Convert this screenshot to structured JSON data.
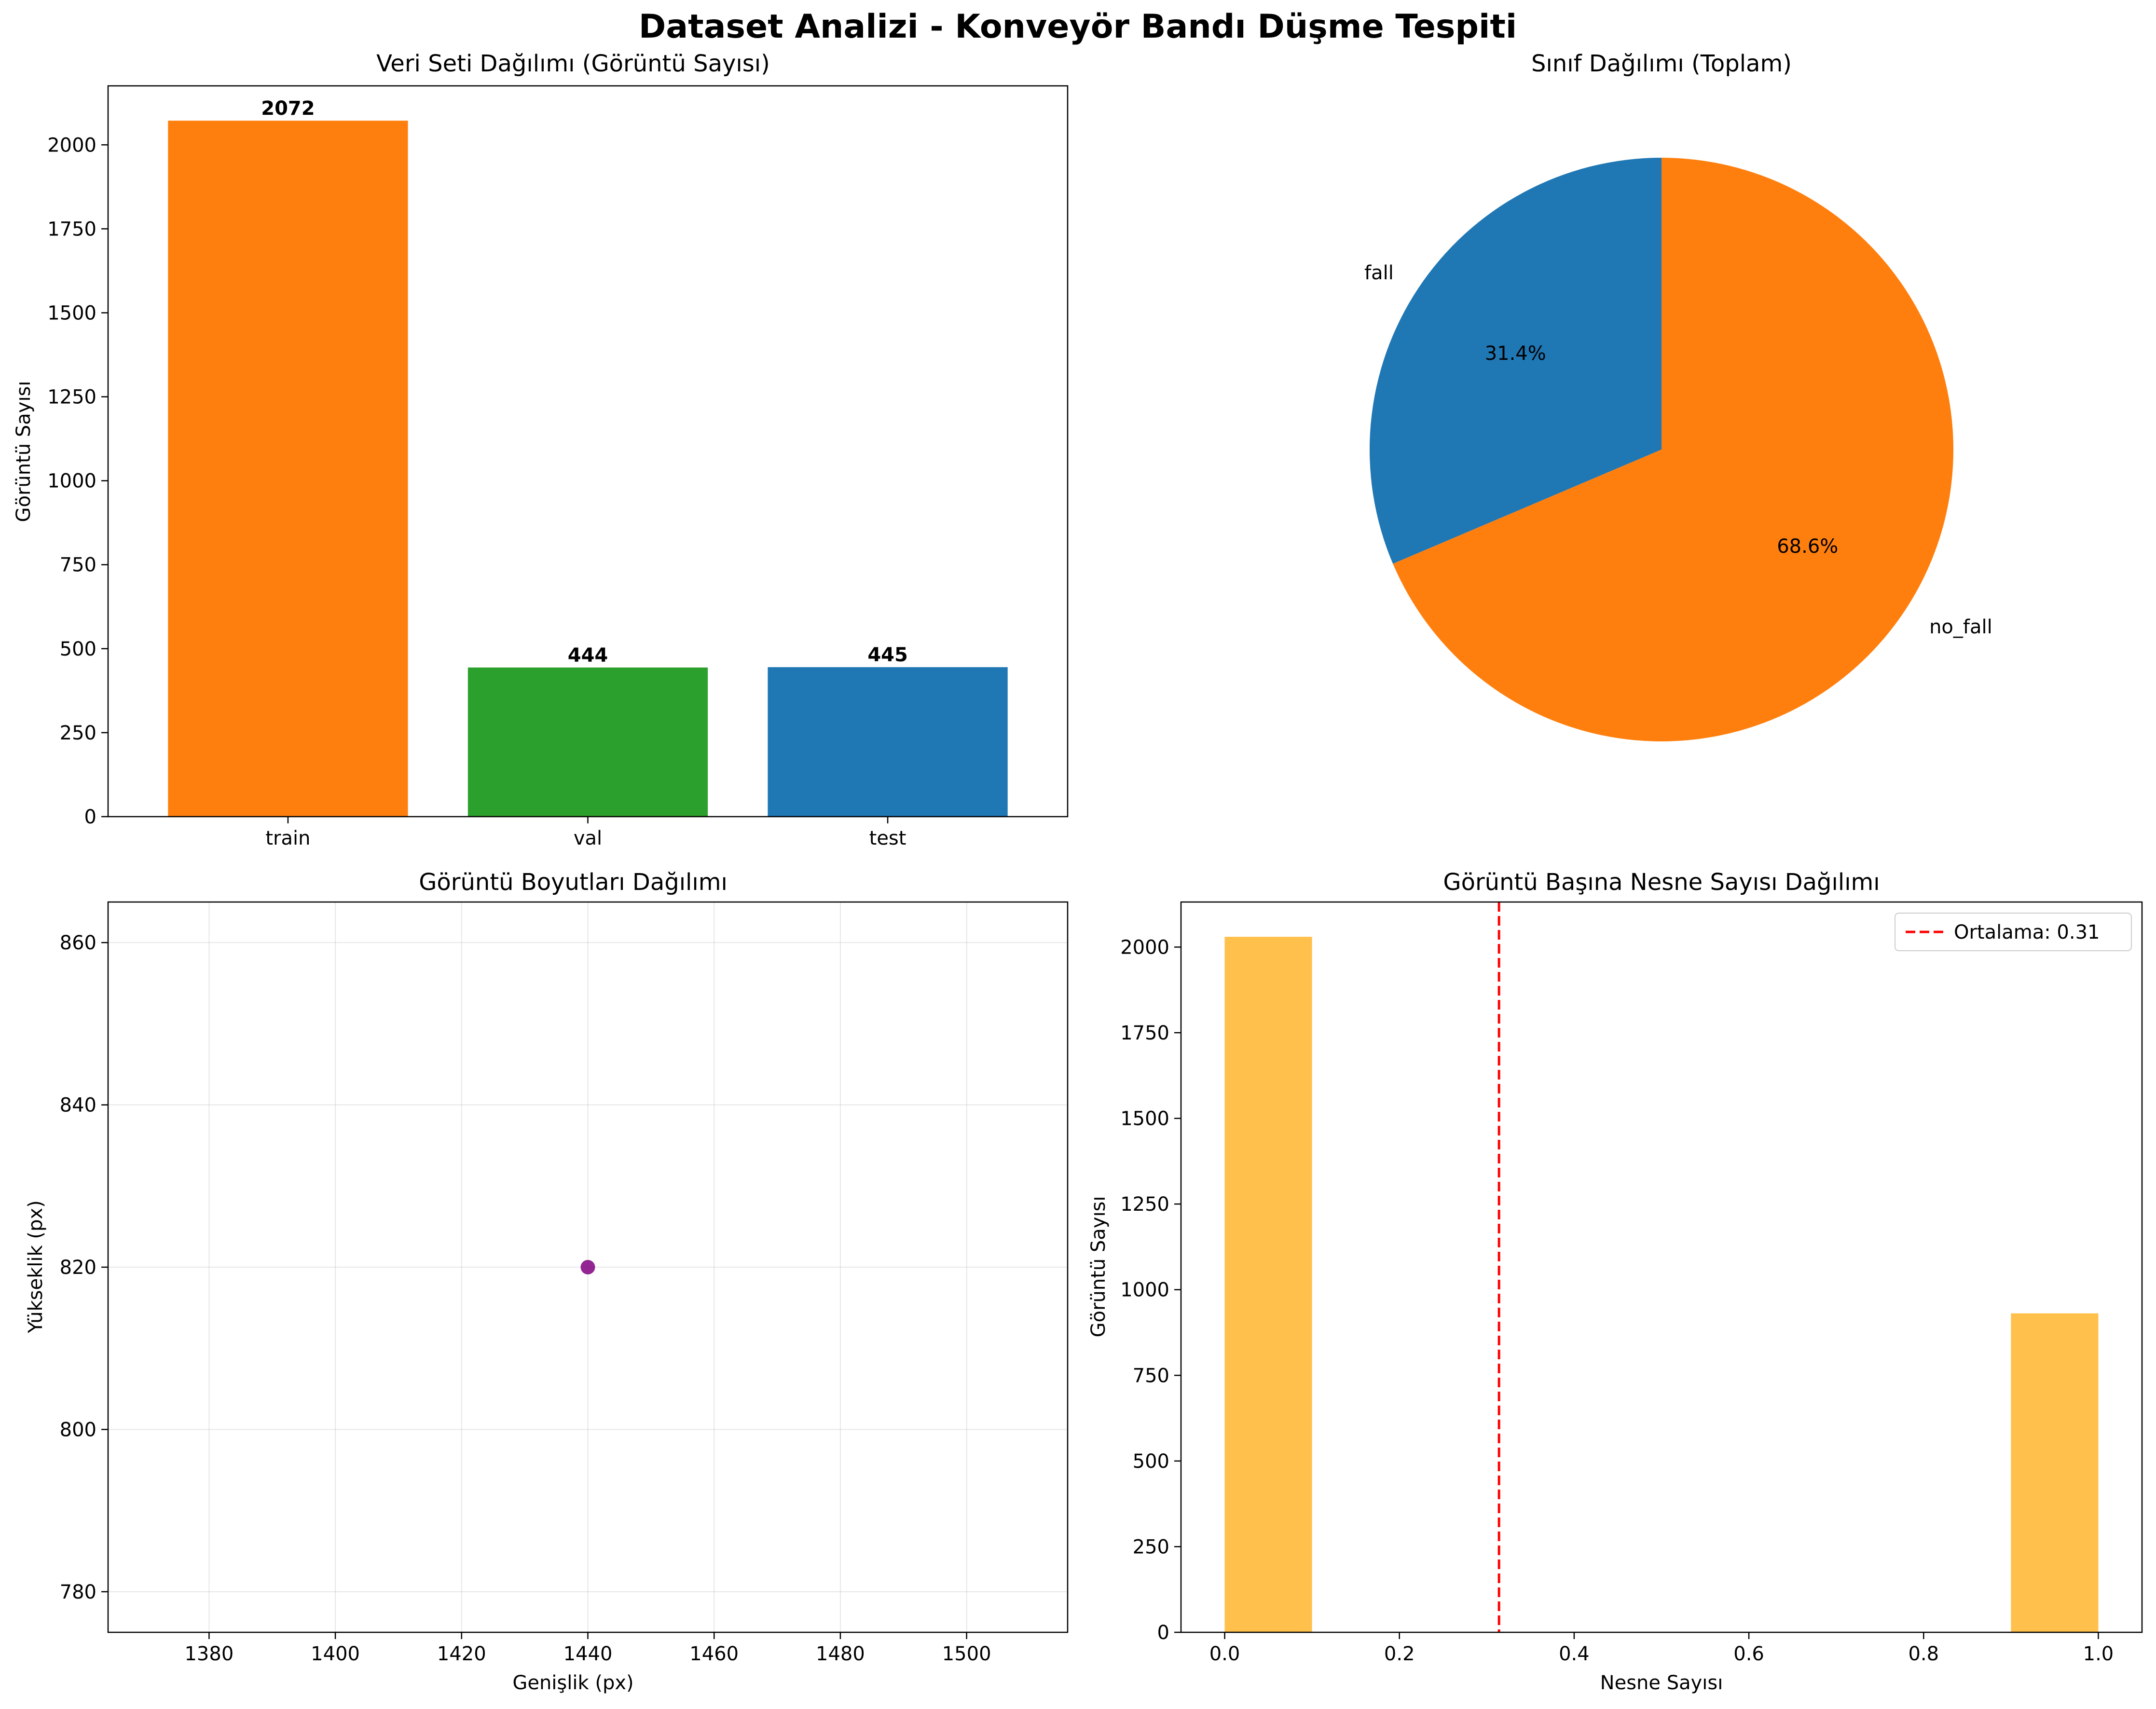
{
  "figure": {
    "title": "Dataset Analizi - Konveyör Bandı Düşme Tespiti"
  },
  "chart_data": [
    {
      "type": "bar",
      "title": "Veri Seti Dağılımı (Görüntü Sayısı)",
      "xlabel": "",
      "ylabel": "Görüntü Sayısı",
      "categories": [
        "train",
        "val",
        "test"
      ],
      "values": [
        2072,
        444,
        445
      ],
      "data_labels": [
        "2072",
        "444",
        "445"
      ],
      "colors": [
        "#ff7f0e",
        "#2ca02c",
        "#1f77b4"
      ],
      "ylim": [
        0,
        2175.6
      ],
      "yticks": [
        0,
        250,
        500,
        750,
        1000,
        1250,
        1500,
        1750,
        2000
      ],
      "ytick_labels": [
        "0",
        "250",
        "500",
        "750",
        "1000",
        "1250",
        "1500",
        "1750",
        "2000"
      ],
      "grid": false
    },
    {
      "type": "pie",
      "title": "Sınıf Dağılımı (Toplam)",
      "labels": [
        "fall",
        "no_fall"
      ],
      "values": [
        31.4,
        68.6
      ],
      "pct_labels": [
        "31.4%",
        "68.6%"
      ],
      "colors": [
        "#1f77b4",
        "#ff7f0e"
      ],
      "start_angle_deg": 90
    },
    {
      "type": "scatter",
      "title": "Görüntü Boyutları Dağılımı",
      "xlabel": "Genişlik (px)",
      "ylabel": "Yükseklik (px)",
      "points": [
        {
          "x": 1440,
          "y": 820
        }
      ],
      "color": "#800080",
      "xlim": [
        1364,
        1516
      ],
      "ylim": [
        775,
        865
      ],
      "xticks": [
        1380,
        1400,
        1420,
        1440,
        1460,
        1480,
        1500
      ],
      "xtick_labels": [
        "1380",
        "1400",
        "1420",
        "1440",
        "1460",
        "1480",
        "1500"
      ],
      "yticks": [
        780,
        800,
        820,
        840,
        860
      ],
      "ytick_labels": [
        "780",
        "800",
        "820",
        "840",
        "860"
      ],
      "grid": true
    },
    {
      "type": "bar",
      "subtype": "histogram",
      "title": "Görüntü Başına Nesne Sayısı Dağılımı",
      "xlabel": "Nesne Sayısı",
      "ylabel": "Görüntü Sayısı",
      "bins": [
        {
          "x0": 0.0,
          "x1": 0.1,
          "count": 2030
        },
        {
          "x0": 0.9,
          "x1": 1.0,
          "count": 931
        }
      ],
      "color": "#ffa500",
      "bar_alpha": 0.7,
      "xlim": [
        -0.05,
        1.05
      ],
      "ylim": [
        0,
        2131.5
      ],
      "xticks": [
        0.0,
        0.2,
        0.4,
        0.6,
        0.8,
        1.0
      ],
      "xtick_labels": [
        "0.0",
        "0.2",
        "0.4",
        "0.6",
        "0.8",
        "1.0"
      ],
      "yticks": [
        0,
        250,
        500,
        750,
        1000,
        1250,
        1500,
        1750,
        2000
      ],
      "ytick_labels": [
        "0",
        "250",
        "500",
        "750",
        "1000",
        "1250",
        "1500",
        "1750",
        "2000"
      ],
      "mean_line": {
        "x": 0.314,
        "color": "#ff0000",
        "style": "dashed",
        "label": "Ortalama: 0.31"
      },
      "legend": "top-right",
      "grid": false
    }
  ]
}
